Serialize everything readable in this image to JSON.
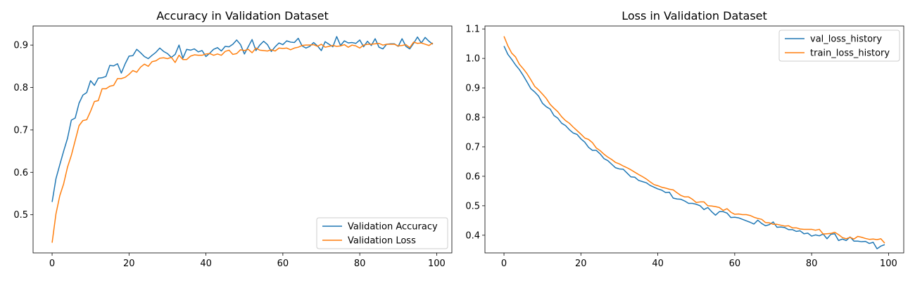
{
  "chart_data": [
    {
      "type": "line",
      "title": "Accuracy in Validation Dataset",
      "xlabel": "",
      "ylabel": "",
      "xlim": [
        -4.95,
        103.95
      ],
      "ylim": [
        0.41,
        0.945
      ],
      "xticks": [
        0,
        20,
        40,
        60,
        80,
        100
      ],
      "yticks": [
        0.5,
        0.6,
        0.7,
        0.8,
        0.9
      ],
      "grid": false,
      "legend_position": "lower-right",
      "series": [
        {
          "name": "Validation Accuracy",
          "color": "#1f77b4",
          "x": [
            0,
            1,
            2,
            3,
            4,
            5,
            6,
            7,
            8,
            9,
            10,
            11,
            12,
            13,
            14,
            15,
            16,
            17,
            18,
            19,
            20,
            21,
            22,
            23,
            24,
            25,
            26,
            27,
            28,
            29,
            30,
            31,
            32,
            33,
            34,
            35,
            36,
            37,
            38,
            39,
            40,
            41,
            42,
            43,
            44,
            45,
            46,
            47,
            48,
            49,
            50,
            51,
            52,
            53,
            54,
            55,
            56,
            57,
            58,
            59,
            60,
            61,
            62,
            63,
            64,
            65,
            66,
            67,
            68,
            69,
            70,
            71,
            72,
            73,
            74,
            75,
            76,
            77,
            78,
            79,
            80,
            81,
            82,
            83,
            84,
            85,
            86,
            87,
            88,
            89,
            90,
            91,
            92,
            93,
            94,
            95,
            96,
            97,
            98,
            99
          ],
          "values": [
            0.53,
            0.585,
            0.618,
            0.65,
            0.68,
            0.723,
            0.728,
            0.763,
            0.782,
            0.788,
            0.816,
            0.805,
            0.822,
            0.823,
            0.826,
            0.852,
            0.851,
            0.856,
            0.834,
            0.856,
            0.874,
            0.875,
            0.89,
            0.882,
            0.873,
            0.868,
            0.876,
            0.883,
            0.893,
            0.885,
            0.88,
            0.871,
            0.878,
            0.9,
            0.869,
            0.89,
            0.888,
            0.891,
            0.884,
            0.887,
            0.873,
            0.881,
            0.89,
            0.894,
            0.886,
            0.897,
            0.896,
            0.902,
            0.912,
            0.901,
            0.879,
            0.896,
            0.913,
            0.887,
            0.9,
            0.909,
            0.901,
            0.885,
            0.896,
            0.905,
            0.901,
            0.91,
            0.907,
            0.906,
            0.916,
            0.898,
            0.893,
            0.897,
            0.906,
            0.898,
            0.887,
            0.908,
            0.902,
            0.896,
            0.92,
            0.899,
            0.91,
            0.905,
            0.906,
            0.904,
            0.912,
            0.896,
            0.909,
            0.899,
            0.915,
            0.895,
            0.891,
            0.902,
            0.903,
            0.903,
            0.897,
            0.915,
            0.897,
            0.891,
            0.904,
            0.919,
            0.905,
            0.918,
            0.909,
            0.902
          ]
        },
        {
          "name": "Validation Loss",
          "color": "#ff7f0e",
          "x": [
            0,
            1,
            2,
            3,
            4,
            5,
            6,
            7,
            8,
            9,
            10,
            11,
            12,
            13,
            14,
            15,
            16,
            17,
            18,
            19,
            20,
            21,
            22,
            23,
            24,
            25,
            26,
            27,
            28,
            29,
            30,
            31,
            32,
            33,
            34,
            35,
            36,
            37,
            38,
            39,
            40,
            41,
            42,
            43,
            44,
            45,
            46,
            47,
            48,
            49,
            50,
            51,
            52,
            53,
            54,
            55,
            56,
            57,
            58,
            59,
            60,
            61,
            62,
            63,
            64,
            65,
            66,
            67,
            68,
            69,
            70,
            71,
            72,
            73,
            74,
            75,
            76,
            77,
            78,
            79,
            80,
            81,
            82,
            83,
            84,
            85,
            86,
            87,
            88,
            89,
            90,
            91,
            92,
            93,
            94,
            95,
            96,
            97,
            98,
            99
          ],
          "values": [
            0.434,
            0.502,
            0.545,
            0.573,
            0.612,
            0.64,
            0.675,
            0.71,
            0.722,
            0.724,
            0.744,
            0.767,
            0.769,
            0.797,
            0.797,
            0.803,
            0.805,
            0.821,
            0.821,
            0.824,
            0.831,
            0.84,
            0.836,
            0.848,
            0.855,
            0.85,
            0.861,
            0.863,
            0.869,
            0.87,
            0.868,
            0.871,
            0.859,
            0.876,
            0.866,
            0.866,
            0.874,
            0.877,
            0.876,
            0.876,
            0.879,
            0.88,
            0.876,
            0.879,
            0.876,
            0.885,
            0.888,
            0.878,
            0.88,
            0.889,
            0.887,
            0.89,
            0.882,
            0.893,
            0.888,
            0.887,
            0.886,
            0.889,
            0.886,
            0.893,
            0.892,
            0.893,
            0.889,
            0.893,
            0.895,
            0.899,
            0.9,
            0.9,
            0.901,
            0.897,
            0.902,
            0.895,
            0.897,
            0.899,
            0.897,
            0.898,
            0.901,
            0.895,
            0.9,
            0.898,
            0.893,
            0.9,
            0.902,
            0.902,
            0.903,
            0.904,
            0.9,
            0.902,
            0.902,
            0.902,
            0.898,
            0.899,
            0.901,
            0.894,
            0.907,
            0.904,
            0.905,
            0.902,
            0.899,
            0.905
          ]
        }
      ]
    },
    {
      "type": "line",
      "title": "Loss in Validation Dataset",
      "xlabel": "",
      "ylabel": "",
      "xlim": [
        -4.95,
        103.95
      ],
      "ylim": [
        0.34,
        1.11
      ],
      "xticks": [
        0,
        20,
        40,
        60,
        80,
        100
      ],
      "yticks": [
        0.4,
        0.5,
        0.6,
        0.7,
        0.8,
        0.9,
        1.0,
        1.1
      ],
      "grid": false,
      "legend_position": "top-right",
      "series": [
        {
          "name": "val_loss_history",
          "color": "#1f77b4",
          "x": [
            0,
            1,
            2,
            3,
            4,
            5,
            6,
            7,
            8,
            9,
            10,
            11,
            12,
            13,
            14,
            15,
            16,
            17,
            18,
            19,
            20,
            21,
            22,
            23,
            24,
            25,
            26,
            27,
            28,
            29,
            30,
            31,
            32,
            33,
            34,
            35,
            36,
            37,
            38,
            39,
            40,
            41,
            42,
            43,
            44,
            45,
            46,
            47,
            48,
            49,
            50,
            51,
            52,
            53,
            54,
            55,
            56,
            57,
            58,
            59,
            60,
            61,
            62,
            63,
            64,
            65,
            66,
            67,
            68,
            69,
            70,
            71,
            72,
            73,
            74,
            75,
            76,
            77,
            78,
            79,
            80,
            81,
            82,
            83,
            84,
            85,
            86,
            87,
            88,
            89,
            90,
            91,
            92,
            93,
            94,
            95,
            96,
            97,
            98,
            99
          ],
          "values": [
            1.042,
            1.014,
            0.997,
            0.978,
            0.962,
            0.942,
            0.92,
            0.897,
            0.886,
            0.872,
            0.848,
            0.836,
            0.828,
            0.806,
            0.797,
            0.78,
            0.772,
            0.758,
            0.747,
            0.742,
            0.727,
            0.716,
            0.698,
            0.688,
            0.688,
            0.676,
            0.66,
            0.653,
            0.641,
            0.629,
            0.625,
            0.624,
            0.611,
            0.598,
            0.597,
            0.586,
            0.582,
            0.578,
            0.569,
            0.563,
            0.557,
            0.553,
            0.545,
            0.546,
            0.526,
            0.523,
            0.522,
            0.516,
            0.508,
            0.508,
            0.505,
            0.5,
            0.487,
            0.494,
            0.48,
            0.468,
            0.48,
            0.48,
            0.475,
            0.46,
            0.461,
            0.459,
            0.454,
            0.449,
            0.444,
            0.438,
            0.451,
            0.44,
            0.432,
            0.436,
            0.445,
            0.427,
            0.428,
            0.426,
            0.419,
            0.419,
            0.413,
            0.415,
            0.405,
            0.407,
            0.397,
            0.401,
            0.398,
            0.404,
            0.388,
            0.403,
            0.405,
            0.382,
            0.387,
            0.382,
            0.394,
            0.38,
            0.38,
            0.378,
            0.379,
            0.372,
            0.376,
            0.354,
            0.363,
            0.368
          ]
        },
        {
          "name": "train_loss_history",
          "color": "#ff7f0e",
          "x": [
            0,
            1,
            2,
            3,
            4,
            5,
            6,
            7,
            8,
            9,
            10,
            11,
            12,
            13,
            14,
            15,
            16,
            17,
            18,
            19,
            20,
            21,
            22,
            23,
            24,
            25,
            26,
            27,
            28,
            29,
            30,
            31,
            32,
            33,
            34,
            35,
            36,
            37,
            38,
            39,
            40,
            41,
            42,
            43,
            44,
            45,
            46,
            47,
            48,
            49,
            50,
            51,
            52,
            53,
            54,
            55,
            56,
            57,
            58,
            59,
            60,
            61,
            62,
            63,
            64,
            65,
            66,
            67,
            68,
            69,
            70,
            71,
            72,
            73,
            74,
            75,
            76,
            77,
            78,
            79,
            80,
            81,
            82,
            83,
            84,
            85,
            86,
            87,
            88,
            89,
            90,
            91,
            92,
            93,
            94,
            95,
            96,
            97,
            98,
            99
          ],
          "values": [
            1.075,
            1.043,
            1.018,
            1.005,
            0.98,
            0.965,
            0.948,
            0.927,
            0.905,
            0.893,
            0.879,
            0.864,
            0.844,
            0.831,
            0.819,
            0.802,
            0.789,
            0.78,
            0.767,
            0.755,
            0.743,
            0.73,
            0.725,
            0.714,
            0.696,
            0.687,
            0.675,
            0.665,
            0.657,
            0.647,
            0.642,
            0.635,
            0.629,
            0.622,
            0.614,
            0.606,
            0.599,
            0.591,
            0.581,
            0.572,
            0.568,
            0.563,
            0.56,
            0.556,
            0.554,
            0.544,
            0.535,
            0.53,
            0.53,
            0.522,
            0.511,
            0.513,
            0.513,
            0.5,
            0.499,
            0.497,
            0.494,
            0.484,
            0.49,
            0.478,
            0.471,
            0.472,
            0.47,
            0.47,
            0.467,
            0.461,
            0.457,
            0.454,
            0.443,
            0.442,
            0.437,
            0.437,
            0.434,
            0.431,
            0.432,
            0.425,
            0.425,
            0.421,
            0.42,
            0.42,
            0.42,
            0.417,
            0.42,
            0.404,
            0.405,
            0.406,
            0.41,
            0.402,
            0.392,
            0.388,
            0.393,
            0.387,
            0.396,
            0.393,
            0.389,
            0.386,
            0.387,
            0.385,
            0.388,
            0.373
          ]
        }
      ]
    }
  ]
}
